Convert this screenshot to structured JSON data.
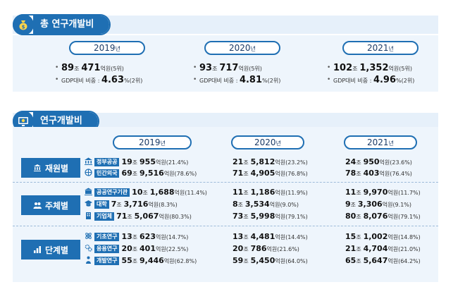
{
  "section1": {
    "title": "총 연구개발비",
    "icon": "money-bag-icon",
    "years": [
      {
        "year": "2019",
        "nyeon": "년",
        "amount_a": "89",
        "jo": "조",
        "amount_b": "471",
        "unit": "억원",
        "rank1": "(5위)",
        "gdp_label": "GDP대비 비중 : ",
        "gdp_value": "4.63",
        "gdp_unit": "%",
        "rank2": "(2위)"
      },
      {
        "year": "2020",
        "nyeon": "년",
        "amount_a": "93",
        "jo": "조",
        "amount_b": "717",
        "unit": "억원",
        "rank1": "(5위)",
        "gdp_label": "GDP대비 비중 : ",
        "gdp_value": "4.81",
        "gdp_unit": "%",
        "rank2": "(2위)"
      },
      {
        "year": "2021",
        "nyeon": "년",
        "amount_a": "102",
        "jo": "조",
        "amount_b": "1,352",
        "unit": "억원",
        "rank1": "(5위)",
        "gdp_label": "GDP대비 비중 : ",
        "gdp_value": "4.96",
        "gdp_unit": "%",
        "rank2": "(2위)"
      }
    ]
  },
  "section2": {
    "title": "연구개발비",
    "icon": "research-screen-icon",
    "years": [
      {
        "year": "2019",
        "nyeon": "년"
      },
      {
        "year": "2020",
        "nyeon": "년"
      },
      {
        "year": "2021",
        "nyeon": "년"
      }
    ],
    "groups": [
      {
        "label": "재원별",
        "icon": "building-icon",
        "rows": [
          {
            "tag": "정부공공",
            "icon": "government-icon",
            "cells": [
              {
                "a": "19",
                "jo": "조",
                "b": "955",
                "u": "억원",
                "p": "(21.4%)"
              },
              {
                "a": "21",
                "jo": "조",
                "b": "5,812",
                "u": "억원",
                "p": "(23.2%)"
              },
              {
                "a": "24",
                "jo": "조",
                "b": "950",
                "u": "억원",
                "p": "(23.6%)"
              }
            ]
          },
          {
            "tag": "민간외국",
            "icon": "globe-building-icon",
            "cells": [
              {
                "a": "69",
                "jo": "조",
                "b": "9,516",
                "u": "억원",
                "p": "(78.6%)"
              },
              {
                "a": "71",
                "jo": "조",
                "b": "4,905",
                "u": "억원",
                "p": "(76.8%)"
              },
              {
                "a": "78",
                "jo": "조",
                "b": "403",
                "u": "억원",
                "p": "(76.4%)"
              }
            ]
          }
        ]
      },
      {
        "label": "주체별",
        "icon": "people-icon",
        "rows": [
          {
            "tag": "공공연구기관",
            "icon": "institute-icon",
            "cells": [
              {
                "a": "10",
                "jo": "조",
                "b": "1,688",
                "u": "억원",
                "p": "(11.4%)"
              },
              {
                "a": "11",
                "jo": "조",
                "b": "1,186",
                "u": "억원",
                "p": "(11.9%)"
              },
              {
                "a": "11",
                "jo": "조",
                "b": "9,970",
                "u": "억원",
                "p": "(11.7%)"
              }
            ]
          },
          {
            "tag": "대학",
            "icon": "university-icon",
            "cells": [
              {
                "a": "7",
                "jo": "조",
                "b": "3,716",
                "u": "억원",
                "p": "(8.3%)"
              },
              {
                "a": "8",
                "jo": "조",
                "b": "3,534",
                "u": "억원",
                "p": "(9.0%)"
              },
              {
                "a": "9",
                "jo": "조",
                "b": "3,306",
                "u": "억원",
                "p": "(9.1%)"
              }
            ]
          },
          {
            "tag": "기업체",
            "icon": "company-icon",
            "cells": [
              {
                "a": "71",
                "jo": "조",
                "b": "5,067",
                "u": "억원",
                "p": "(80.3%)"
              },
              {
                "a": "73",
                "jo": "조",
                "b": "5,998",
                "u": "억원",
                "p": "(79.1%)"
              },
              {
                "a": "80",
                "jo": "조",
                "b": "8,076",
                "u": "억원",
                "p": "(79.1%)"
              }
            ]
          }
        ]
      },
      {
        "label": "단계별",
        "icon": "bar-chart-icon",
        "rows": [
          {
            "tag": "기초연구",
            "icon": "atom-icon",
            "cells": [
              {
                "a": "13",
                "jo": "조",
                "b": "623",
                "u": "억원",
                "p": "(14.7%)"
              },
              {
                "a": "13",
                "jo": "조",
                "b": "4,481",
                "u": "억원",
                "p": "(14.4%)"
              },
              {
                "a": "15",
                "jo": "조",
                "b": "1,002",
                "u": "억원",
                "p": "(14.8%)"
              }
            ]
          },
          {
            "tag": "응용연구",
            "icon": "gears-icon",
            "cells": [
              {
                "a": "20",
                "jo": "조",
                "b": "401",
                "u": "억원",
                "p": "(22.5%)"
              },
              {
                "a": "20",
                "jo": "조",
                "b": "786",
                "u": "억원",
                "p": "(21.6%)"
              },
              {
                "a": "21",
                "jo": "조",
                "b": "4,704",
                "u": "억원",
                "p": "(21.0%)"
              }
            ]
          },
          {
            "tag": "개발연구",
            "icon": "person-up-icon",
            "cells": [
              {
                "a": "55",
                "jo": "조",
                "b": "9,446",
                "u": "억원",
                "p": "(62.8%)"
              },
              {
                "a": "59",
                "jo": "조",
                "b": "5,450",
                "u": "억원",
                "p": "(64.0%)"
              },
              {
                "a": "65",
                "jo": "조",
                "b": "5,647",
                "u": "억원",
                "p": "(64.2%)"
              }
            ]
          }
        ]
      }
    ]
  },
  "colors": {
    "accent": "#1f6fb3",
    "light_bg": "#eef5fc",
    "band": "#e6f0fa"
  }
}
